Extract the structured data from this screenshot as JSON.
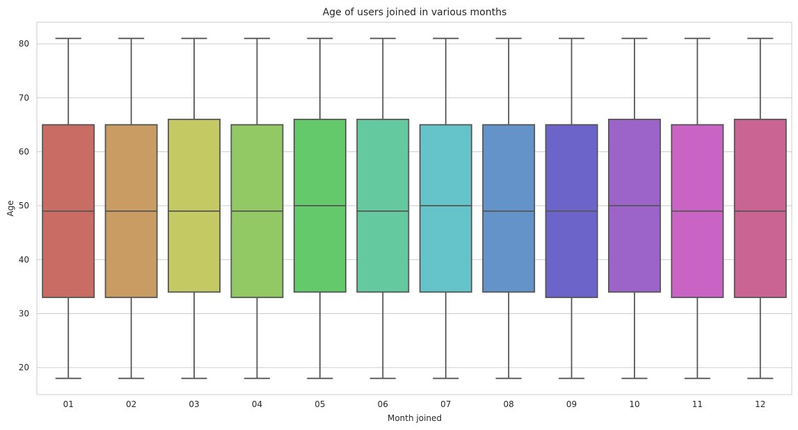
{
  "chart_data": {
    "type": "box",
    "title": "Age of users joined in various months",
    "xlabel": "Month joined",
    "ylabel": "Age",
    "ylim": [
      15,
      84
    ],
    "yticks": [
      20,
      30,
      40,
      50,
      60,
      70,
      80
    ],
    "grid": true,
    "categories": [
      "01",
      "02",
      "03",
      "04",
      "05",
      "06",
      "07",
      "08",
      "09",
      "10",
      "11",
      "12"
    ],
    "boxes": [
      {
        "whisker_low": 18,
        "q1": 33,
        "median": 49,
        "q3": 65,
        "whisker_high": 81
      },
      {
        "whisker_low": 18,
        "q1": 33,
        "median": 49,
        "q3": 65,
        "whisker_high": 81
      },
      {
        "whisker_low": 18,
        "q1": 34,
        "median": 49,
        "q3": 66,
        "whisker_high": 81
      },
      {
        "whisker_low": 18,
        "q1": 33,
        "median": 49,
        "q3": 65,
        "whisker_high": 81
      },
      {
        "whisker_low": 18,
        "q1": 34,
        "median": 50,
        "q3": 66,
        "whisker_high": 81
      },
      {
        "whisker_low": 18,
        "q1": 34,
        "median": 49,
        "q3": 66,
        "whisker_high": 81
      },
      {
        "whisker_low": 18,
        "q1": 34,
        "median": 50,
        "q3": 65,
        "whisker_high": 81
      },
      {
        "whisker_low": 18,
        "q1": 34,
        "median": 49,
        "q3": 65,
        "whisker_high": 81
      },
      {
        "whisker_low": 18,
        "q1": 33,
        "median": 49,
        "q3": 65,
        "whisker_high": 81
      },
      {
        "whisker_low": 18,
        "q1": 34,
        "median": 50,
        "q3": 66,
        "whisker_high": 81
      },
      {
        "whisker_low": 18,
        "q1": 33,
        "median": 49,
        "q3": 65,
        "whisker_high": 81
      },
      {
        "whisker_low": 18,
        "q1": 33,
        "median": 49,
        "q3": 66,
        "whisker_high": 81
      }
    ],
    "colors": [
      "#c96d64",
      "#c99c64",
      "#c4c964",
      "#93c964",
      "#64c96b",
      "#64c99e",
      "#64c4c9",
      "#6493c9",
      "#6d64c9",
      "#9c64c9",
      "#c964c4",
      "#c96493"
    ],
    "line_color": "#555555",
    "grid_color": "#cccccc"
  }
}
